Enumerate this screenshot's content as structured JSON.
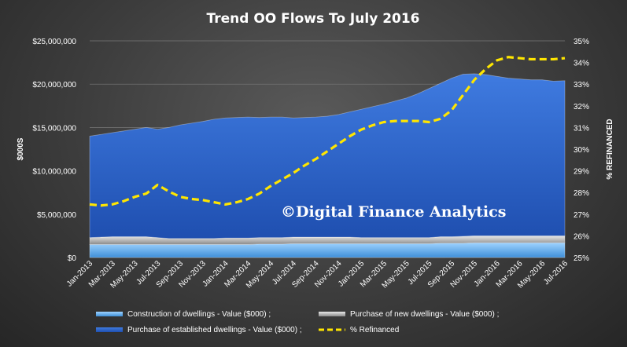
{
  "chart_data": {
    "type": "area",
    "title": "Trend OO Flows To July 2016",
    "ylabel": "$000S",
    "y2label": "% REFINANCED",
    "ylim": [
      0,
      25000000
    ],
    "y2lim": [
      25,
      35
    ],
    "grid": true,
    "legend_position": "bottom",
    "x_tick_labels": [
      "Jan-2013",
      "Mar-2013",
      "May-2013",
      "Jul-2013",
      "Sep-2013",
      "Nov-2013",
      "Jan-2014",
      "Mar-2014",
      "May-2014",
      "Jul-2014",
      "Sep-2014",
      "Nov-2014",
      "Jan-2015",
      "Mar-2015",
      "May-2015",
      "Jul-2015",
      "Sep-2015",
      "Nov-2015",
      "Jan-2016",
      "Mar-2016",
      "May-2016",
      "Jul-2016"
    ],
    "y_tick_labels": [
      "$0",
      "$5,000,000",
      "$10,000,000",
      "$15,000,000",
      "$20,000,000",
      "$25,000,000"
    ],
    "y_tick_values": [
      0,
      5000000,
      10000000,
      15000000,
      20000000,
      25000000
    ],
    "y2_tick_labels": [
      "25%",
      "26%",
      "27%",
      "28%",
      "29%",
      "30%",
      "31%",
      "32%",
      "33%",
      "34%",
      "35%"
    ],
    "y2_tick_values": [
      25,
      26,
      27,
      28,
      29,
      30,
      31,
      32,
      33,
      34,
      35
    ],
    "x": [
      "Jan-2013",
      "Feb-2013",
      "Mar-2013",
      "Apr-2013",
      "May-2013",
      "Jun-2013",
      "Jul-2013",
      "Aug-2013",
      "Sep-2013",
      "Oct-2013",
      "Nov-2013",
      "Dec-2013",
      "Jan-2014",
      "Feb-2014",
      "Mar-2014",
      "Apr-2014",
      "May-2014",
      "Jun-2014",
      "Jul-2014",
      "Aug-2014",
      "Sep-2014",
      "Oct-2014",
      "Nov-2014",
      "Dec-2014",
      "Jan-2015",
      "Feb-2015",
      "Mar-2015",
      "Apr-2015",
      "May-2015",
      "Jun-2015",
      "Jul-2015",
      "Aug-2015",
      "Sep-2015",
      "Oct-2015",
      "Nov-2015",
      "Dec-2015",
      "Jan-2016",
      "Feb-2016",
      "Mar-2016",
      "Apr-2016",
      "May-2016",
      "Jun-2016",
      "Jul-2016"
    ],
    "series": [
      {
        "name": "Construction of dwellings - Value ($000) ;",
        "kind": "stacked-area",
        "color": "#5aaae6",
        "values": [
          1500000,
          1500000,
          1500000,
          1500000,
          1500000,
          1500000,
          1500000,
          1500000,
          1500000,
          1500000,
          1500000,
          1500000,
          1500000,
          1500000,
          1500000,
          1550000,
          1550000,
          1550000,
          1600000,
          1600000,
          1600000,
          1600000,
          1600000,
          1600000,
          1600000,
          1600000,
          1600000,
          1600000,
          1600000,
          1600000,
          1600000,
          1650000,
          1650000,
          1650000,
          1700000,
          1700000,
          1700000,
          1700000,
          1700000,
          1700000,
          1700000,
          1700000,
          1700000
        ]
      },
      {
        "name": "Purchase of new dwellings - Value ($000) ;",
        "kind": "stacked-area",
        "color": "#b4b4b4",
        "values": [
          800000,
          850000,
          900000,
          900000,
          900000,
          900000,
          800000,
          700000,
          700000,
          700000,
          700000,
          700000,
          750000,
          750000,
          750000,
          750000,
          750000,
          750000,
          750000,
          750000,
          750000,
          750000,
          750000,
          750000,
          700000,
          700000,
          700000,
          700000,
          700000,
          700000,
          700000,
          750000,
          750000,
          800000,
          800000,
          800000,
          800000,
          800000,
          800000,
          800000,
          800000,
          800000,
          800000
        ]
      },
      {
        "name": "Purchase of established dwellings - Value ($000) ;",
        "kind": "stacked-area",
        "color": "#2e62c6",
        "values": [
          11700000,
          11850000,
          12000000,
          12200000,
          12400000,
          12600000,
          12500000,
          12800000,
          13100000,
          13300000,
          13500000,
          13750000,
          13850000,
          13900000,
          13950000,
          13850000,
          13900000,
          13900000,
          13750000,
          13800000,
          13850000,
          13950000,
          14150000,
          14450000,
          14800000,
          15100000,
          15400000,
          15750000,
          16100000,
          16600000,
          17200000,
          17700000,
          18300000,
          18700000,
          18700000,
          18600000,
          18400000,
          18200000,
          18100000,
          18000000,
          18000000,
          17850000,
          17900000
        ]
      },
      {
        "name": "% Refinanced",
        "kind": "line",
        "axis": "y2",
        "color": "#ffe600",
        "values": [
          27.45,
          27.4,
          27.45,
          27.6,
          27.8,
          27.95,
          28.35,
          28.05,
          27.8,
          27.7,
          27.65,
          27.55,
          27.45,
          27.55,
          27.7,
          27.95,
          28.3,
          28.6,
          28.9,
          29.25,
          29.55,
          29.9,
          30.25,
          30.6,
          30.9,
          31.1,
          31.25,
          31.3,
          31.3,
          31.3,
          31.25,
          31.4,
          31.8,
          32.5,
          33.2,
          33.7,
          34.1,
          34.25,
          34.2,
          34.15,
          34.15,
          34.15,
          34.2
        ]
      }
    ],
    "watermark": "©Digital Finance Analytics"
  }
}
